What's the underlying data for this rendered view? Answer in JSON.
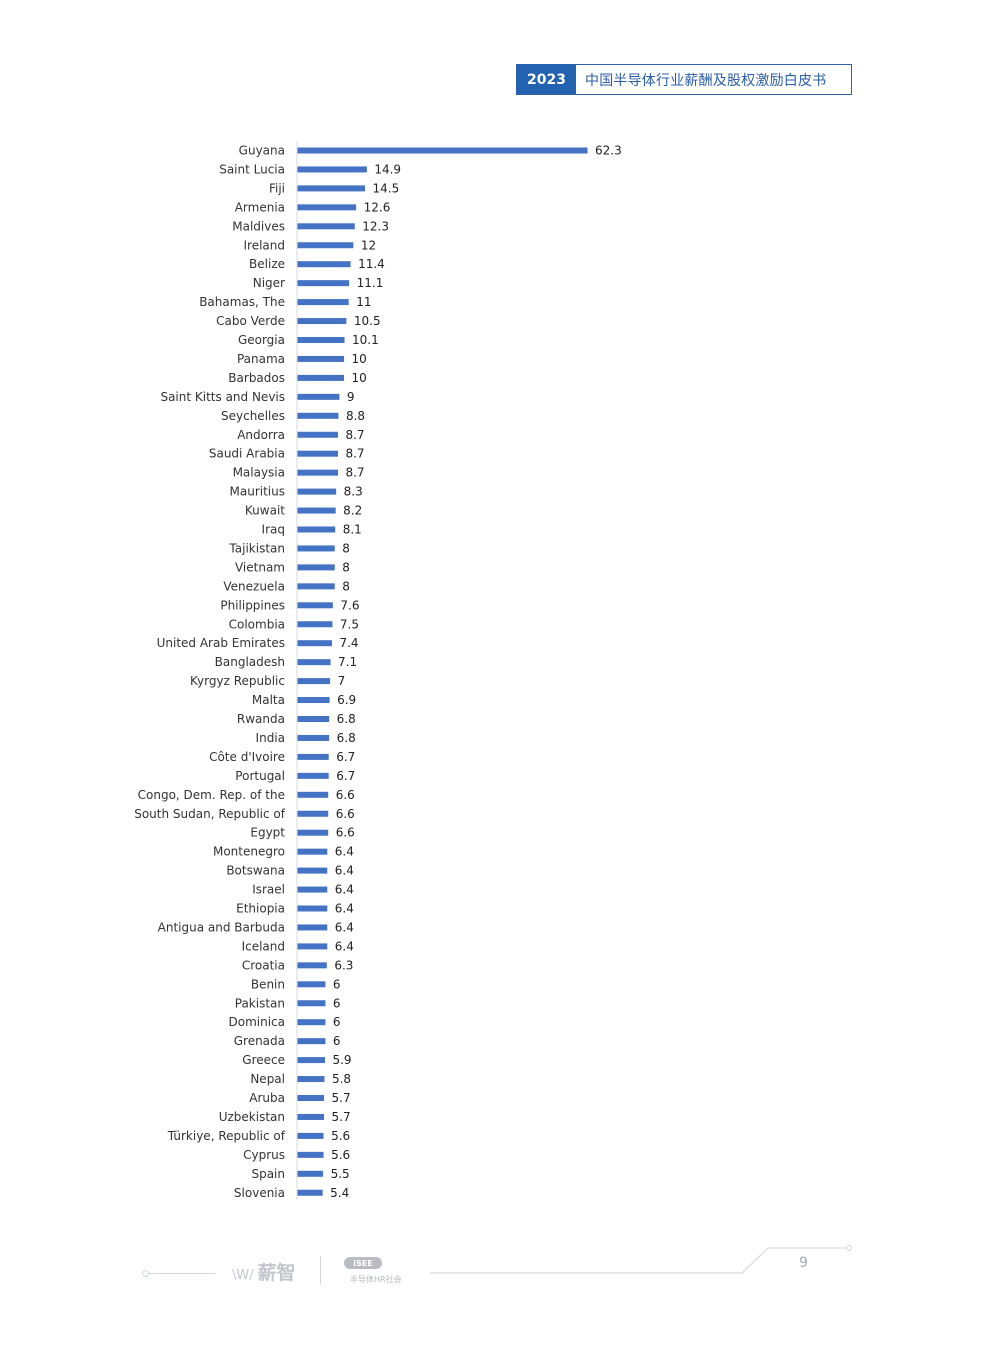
{
  "header": {
    "year": "2023",
    "title": "中国半导体行业薪酬及股权激励白皮书"
  },
  "chart_data": {
    "type": "bar",
    "orientation": "horizontal",
    "bar_color": "#4472c4",
    "categories": [
      "Guyana",
      "Saint Lucia",
      "Fiji",
      "Armenia",
      "Maldives",
      "Ireland",
      "Belize",
      "Niger",
      "Bahamas, The",
      "Cabo Verde",
      "Georgia",
      "Panama",
      "Barbados",
      "Saint Kitts and Nevis",
      "Seychelles",
      "Andorra",
      "Saudi Arabia",
      "Malaysia",
      "Mauritius",
      "Kuwait",
      "Iraq",
      "Tajikistan",
      "Vietnam",
      "Venezuela",
      "Philippines",
      "Colombia",
      "United Arab Emirates",
      "Bangladesh",
      "Kyrgyz Republic",
      "Malta",
      "Rwanda",
      "India",
      "Côte d'Ivoire",
      "Portugal",
      "Congo, Dem. Rep. of the",
      "South Sudan, Republic of",
      "Egypt",
      "Montenegro",
      "Botswana",
      "Israel",
      "Ethiopia",
      "Antigua and Barbuda",
      "Iceland",
      "Croatia",
      "Benin",
      "Pakistan",
      "Dominica",
      "Grenada",
      "Greece",
      "Nepal",
      "Aruba",
      "Uzbekistan",
      "Türkiye, Republic of",
      "Cyprus",
      "Spain",
      "Slovenia"
    ],
    "values": [
      62.3,
      14.9,
      14.5,
      12.6,
      12.3,
      12,
      11.4,
      11.1,
      11,
      10.5,
      10.1,
      10,
      10,
      9,
      8.8,
      8.7,
      8.7,
      8.7,
      8.3,
      8.2,
      8.1,
      8,
      8,
      8,
      7.6,
      7.5,
      7.4,
      7.1,
      7,
      6.9,
      6.8,
      6.8,
      6.7,
      6.7,
      6.6,
      6.6,
      6.6,
      6.4,
      6.4,
      6.4,
      6.4,
      6.4,
      6.4,
      6.3,
      6,
      6,
      6,
      6,
      5.9,
      5.8,
      5.7,
      5.7,
      5.6,
      5.6,
      5.5,
      5.4
    ],
    "value_labels": [
      "62.3",
      "14.9",
      "14.5",
      "12.6",
      "12.3",
      "12",
      "11.4",
      "11.1",
      "11",
      "10.5",
      "10.1",
      "10",
      "10",
      "9",
      "8.8",
      "8.7",
      "8.7",
      "8.7",
      "8.3",
      "8.2",
      "8.1",
      "8",
      "8",
      "8",
      "7.6",
      "7.5",
      "7.4",
      "7.1",
      "7",
      "6.9",
      "6.8",
      "6.8",
      "6.7",
      "6.7",
      "6.6",
      "6.6",
      "6.6",
      "6.4",
      "6.4",
      "6.4",
      "6.4",
      "6.4",
      "6.4",
      "6.3",
      "6",
      "6",
      "6",
      "6",
      "5.9",
      "5.8",
      "5.7",
      "5.7",
      "5.6",
      "5.6",
      "5.5",
      "5.4"
    ],
    "xlim": [
      0,
      62.3
    ],
    "grid": false,
    "legend": "none"
  },
  "footer": {
    "page_number": "9",
    "logo_left_text": "薪智",
    "logo_left_mark": "\\W/",
    "logo_right_badge": "iSEE",
    "logo_right_text": "半导体HR社会"
  }
}
